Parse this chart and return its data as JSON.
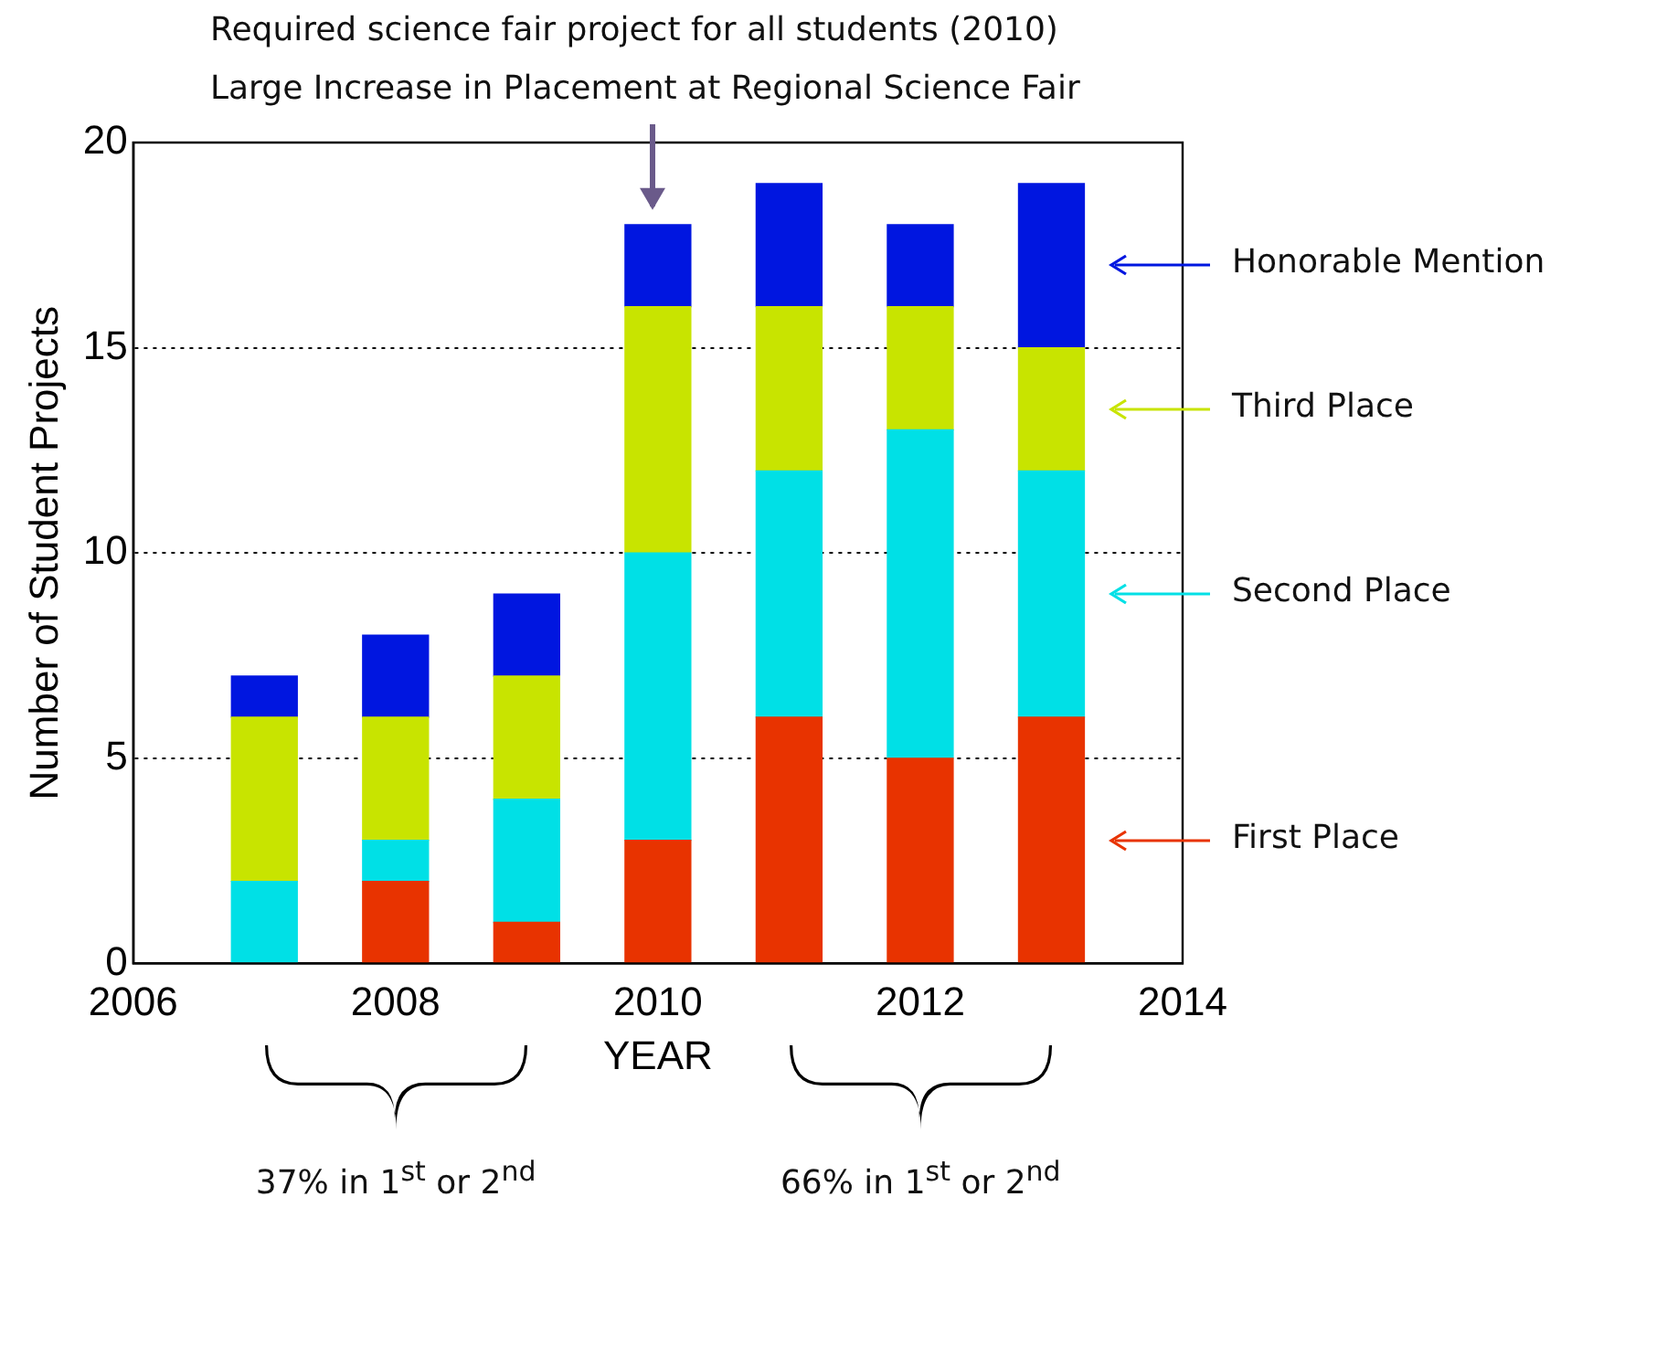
{
  "chart_data": {
    "type": "bar",
    "stacked": true,
    "xlabel": "YEAR",
    "ylabel": "Number of Student Projects",
    "x": [
      2007,
      2008,
      2009,
      2010,
      2011,
      2012,
      2013
    ],
    "series": [
      {
        "name": "First Place",
        "color": "#e83300",
        "values": [
          0,
          2,
          1,
          3,
          6,
          5,
          6
        ]
      },
      {
        "name": "Second Place",
        "color": "#00e0e6",
        "values": [
          2,
          1,
          3,
          7,
          6,
          8,
          6
        ]
      },
      {
        "name": "Third Place",
        "color": "#c8e400",
        "values": [
          4,
          3,
          3,
          6,
          4,
          3,
          3
        ]
      },
      {
        "name": "Honorable Mention",
        "color": "#0016e0",
        "values": [
          1,
          2,
          2,
          2,
          3,
          2,
          4
        ]
      }
    ],
    "xlim": [
      2006,
      2014
    ],
    "xticks": [
      2006,
      2008,
      2010,
      2012,
      2014
    ],
    "ylim": [
      0,
      20
    ],
    "yticks": [
      0,
      5,
      10,
      15,
      20
    ],
    "grid": "y",
    "legend": "right",
    "annotations": [
      "Required science fair project for all students (2010)",
      "Large Increase in Placement at Regional Science Fair",
      "37% in 1$^{st}$ or 2$^{nd}$",
      "66% in 1$^{st}$ or 2$^{nd}$"
    ]
  }
}
